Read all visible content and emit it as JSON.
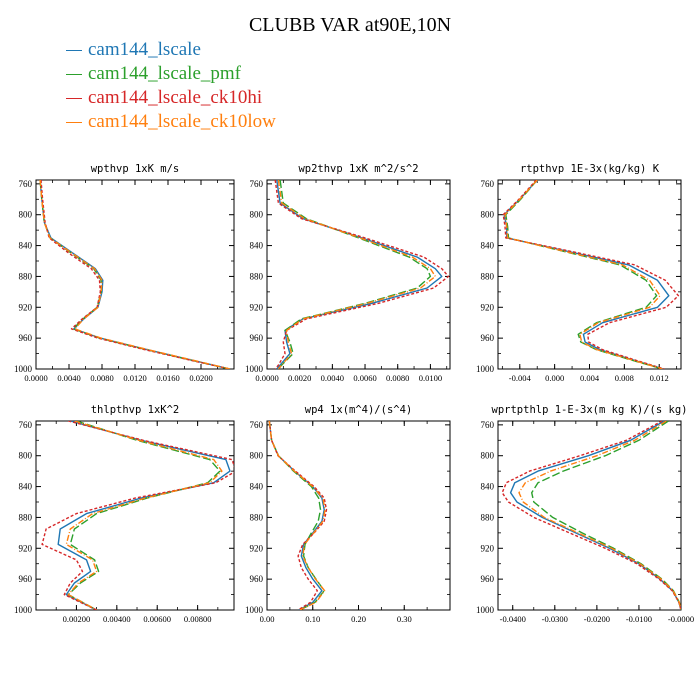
{
  "page": {
    "title": "CLUBB VAR at90E,10N"
  },
  "legend": [
    {
      "label": "cam144_lscale",
      "color": "#1f77b4"
    },
    {
      "label": "cam144_lscale_pmf",
      "color": "#2ca02c"
    },
    {
      "label": "cam144_lscale_ck10hi",
      "color": "#d62728"
    },
    {
      "label": "cam144_lscale_ck10low",
      "color": "#ff7f0e"
    }
  ],
  "chart_data": [
    {
      "type": "line",
      "title": "wpthvp  1xK m/s",
      "ylim": [
        1000,
        755
      ],
      "yticks": [
        760,
        800,
        840,
        880,
        920,
        960,
        1000
      ],
      "xlim": [
        0,
        0.024
      ],
      "xticks": [
        "0.0000",
        "0.0040",
        "0.0080",
        "0.0120",
        "0.0160",
        "0.0200"
      ],
      "xtick_values": [
        0,
        0.004,
        0.008,
        0.012,
        0.016,
        0.02
      ],
      "y": [
        755,
        780,
        810,
        830,
        850,
        870,
        885,
        900,
        920,
        935,
        948,
        960,
        975,
        990,
        1000
      ],
      "series": [
        {
          "name": "cam144_lscale",
          "color": "#1f77b4",
          "dash": "",
          "values": [
            0.0005,
            0.0007,
            0.001,
            0.0018,
            0.0045,
            0.0072,
            0.0081,
            0.008,
            0.0075,
            0.0058,
            0.0046,
            0.0078,
            0.0135,
            0.0195,
            0.0235
          ]
        },
        {
          "name": "cam144_lscale_pmf",
          "color": "#2ca02c",
          "dash": "8 3",
          "values": [
            0.0005,
            0.0007,
            0.001,
            0.0017,
            0.0043,
            0.007,
            0.0079,
            0.0079,
            0.0074,
            0.0057,
            0.0045,
            0.0077,
            0.0134,
            0.0194,
            0.0235
          ]
        },
        {
          "name": "cam144_lscale_ck10hi",
          "color": "#d62728",
          "dash": "3 2",
          "values": [
            0.0006,
            0.0008,
            0.0011,
            0.0016,
            0.004,
            0.0067,
            0.0077,
            0.0078,
            0.0074,
            0.0056,
            0.0043,
            0.0075,
            0.0132,
            0.0193,
            0.0235
          ]
        },
        {
          "name": "cam144_lscale_ck10low",
          "color": "#ff7f0e",
          "dash": "6 2 1 2",
          "values": [
            0.0005,
            0.0007,
            0.001,
            0.0017,
            0.0044,
            0.0071,
            0.008,
            0.0079,
            0.0075,
            0.0058,
            0.0047,
            0.0079,
            0.0136,
            0.0196,
            0.0235
          ]
        }
      ]
    },
    {
      "type": "line",
      "title": "wp2thvp  1xK m^2/s^2",
      "ylim": [
        1000,
        755
      ],
      "yticks": [
        760,
        800,
        840,
        880,
        920,
        960,
        1000
      ],
      "xlim": [
        0,
        0.0112
      ],
      "xticks": [
        "0.0000",
        "0.0020",
        "0.0040",
        "0.0060",
        "0.0080",
        "0.0100"
      ],
      "xtick_values": [
        0,
        0.002,
        0.004,
        0.006,
        0.008,
        0.01
      ],
      "y": [
        755,
        785,
        805,
        830,
        855,
        870,
        880,
        895,
        915,
        935,
        950,
        965,
        980,
        995,
        1000
      ],
      "series": [
        {
          "name": "cam144_lscale",
          "color": "#1f77b4",
          "dash": "",
          "values": [
            0.0006,
            0.0008,
            0.0022,
            0.0058,
            0.0092,
            0.0103,
            0.0107,
            0.0098,
            0.0064,
            0.0022,
            0.0011,
            0.0012,
            0.0014,
            0.0008,
            0.0006
          ]
        },
        {
          "name": "cam144_lscale_pmf",
          "color": "#2ca02c",
          "dash": "8 3",
          "values": [
            0.0008,
            0.001,
            0.0024,
            0.0056,
            0.0087,
            0.0098,
            0.01,
            0.0092,
            0.006,
            0.0021,
            0.0011,
            0.0014,
            0.0016,
            0.0009,
            0.0007
          ]
        },
        {
          "name": "cam144_lscale_ck10hi",
          "color": "#d62728",
          "dash": "3 2",
          "values": [
            0.0005,
            0.0007,
            0.0021,
            0.006,
            0.0096,
            0.0107,
            0.0111,
            0.0102,
            0.0068,
            0.0024,
            0.0012,
            0.001,
            0.0011,
            0.0007,
            0.0005
          ]
        },
        {
          "name": "cam144_lscale_ck10low",
          "color": "#ff7f0e",
          "dash": "6 2 1 2",
          "values": [
            0.0007,
            0.0009,
            0.0023,
            0.0057,
            0.0089,
            0.01,
            0.0103,
            0.0094,
            0.0061,
            0.0022,
            0.0012,
            0.0013,
            0.0015,
            0.0009,
            0.0007
          ]
        }
      ]
    },
    {
      "type": "line",
      "title": "rtpthvp  1E-3x(kg/kg) K",
      "ylim": [
        1000,
        755
      ],
      "yticks": [
        760,
        800,
        840,
        880,
        920,
        960,
        1000
      ],
      "xlim": [
        -0.0065,
        0.0145
      ],
      "xticks": [
        "-0.004",
        "0.000",
        "0.004",
        "0.008",
        "0.012"
      ],
      "xtick_values": [
        -0.004,
        0,
        0.004,
        0.008,
        0.012
      ],
      "y": [
        755,
        780,
        800,
        815,
        830,
        845,
        865,
        885,
        905,
        920,
        940,
        955,
        965,
        975,
        990,
        1000
      ],
      "series": [
        {
          "name": "cam144_lscale",
          "color": "#1f77b4",
          "dash": "",
          "values": [
            -0.002,
            -0.004,
            -0.0058,
            -0.0055,
            -0.0055,
            0.0005,
            0.0085,
            0.0118,
            0.0131,
            0.0118,
            0.0055,
            0.0033,
            0.0035,
            0.0052,
            0.0095,
            0.0125
          ]
        },
        {
          "name": "cam144_lscale_pmf",
          "color": "#2ca02c",
          "dash": "8 3",
          "values": [
            -0.002,
            -0.0039,
            -0.0056,
            -0.0054,
            -0.0053,
            0.0001,
            0.0075,
            0.0105,
            0.0117,
            0.0105,
            0.0048,
            0.0027,
            0.003,
            0.0048,
            0.0093,
            0.0124
          ]
        },
        {
          "name": "cam144_lscale_ck10hi",
          "color": "#d62728",
          "dash": "3 2",
          "values": [
            -0.0021,
            -0.0041,
            -0.0059,
            -0.0057,
            -0.0056,
            0.0008,
            0.0092,
            0.0127,
            0.0142,
            0.0128,
            0.0063,
            0.0038,
            0.0039,
            0.0055,
            0.0097,
            0.0126
          ]
        },
        {
          "name": "cam144_lscale_ck10low",
          "color": "#ff7f0e",
          "dash": "6 2 1 2",
          "values": [
            -0.002,
            -0.004,
            -0.0057,
            -0.0055,
            -0.0054,
            0.0002,
            0.0078,
            0.0109,
            0.0121,
            0.0109,
            0.005,
            0.0029,
            0.0031,
            0.0049,
            0.0094,
            0.0124
          ]
        }
      ]
    },
    {
      "type": "line",
      "title": "thlpthvp  1xK^2",
      "ylim": [
        1000,
        755
      ],
      "yticks": [
        760,
        800,
        840,
        880,
        920,
        960,
        1000
      ],
      "xlim": [
        0,
        0.0098
      ],
      "xticks": [
        "0.00200",
        "0.00400",
        "0.00600",
        "0.00800"
      ],
      "xtick_values": [
        0.002,
        0.004,
        0.006,
        0.008
      ],
      "y": [
        755,
        780,
        805,
        820,
        835,
        855,
        875,
        895,
        915,
        935,
        950,
        965,
        980,
        1000
      ],
      "series": [
        {
          "name": "cam144_lscale",
          "color": "#1f77b4",
          "dash": "",
          "values": [
            0.0017,
            0.0052,
            0.0094,
            0.0096,
            0.0088,
            0.0052,
            0.0025,
            0.0012,
            0.0011,
            0.0025,
            0.0027,
            0.0019,
            0.0015,
            0.003
          ]
        },
        {
          "name": "cam144_lscale_pmf",
          "color": "#2ca02c",
          "dash": "8 3",
          "values": [
            0.002,
            0.005,
            0.0086,
            0.0091,
            0.0085,
            0.0055,
            0.003,
            0.0019,
            0.0017,
            0.0029,
            0.0031,
            0.0022,
            0.0016,
            0.003
          ]
        },
        {
          "name": "cam144_lscale_ck10hi",
          "color": "#d62728",
          "dash": "3 2",
          "values": [
            0.0016,
            0.0053,
            0.0097,
            0.0099,
            0.0089,
            0.0049,
            0.002,
            0.0005,
            0.0003,
            0.002,
            0.0023,
            0.0017,
            0.0014,
            0.003
          ]
        },
        {
          "name": "cam144_lscale_ck10low",
          "color": "#ff7f0e",
          "dash": "6 2 1 2",
          "values": [
            0.0019,
            0.0051,
            0.0088,
            0.0092,
            0.0086,
            0.0054,
            0.0028,
            0.0017,
            0.0015,
            0.0028,
            0.003,
            0.0021,
            0.0016,
            0.003
          ]
        }
      ]
    },
    {
      "type": "line",
      "title": "wp4  1x(m^4)/(s^4)",
      "ylim": [
        1000,
        755
      ],
      "yticks": [
        760,
        800,
        840,
        880,
        920,
        960,
        1000
      ],
      "xlim": [
        0,
        0.4
      ],
      "xticks": [
        "0.00",
        "0.10",
        "0.20",
        "0.30"
      ],
      "xtick_values": [
        0,
        0.1,
        0.2,
        0.3
      ],
      "y": [
        755,
        780,
        800,
        820,
        840,
        855,
        870,
        885,
        900,
        915,
        930,
        945,
        960,
        975,
        990,
        1000
      ],
      "series": [
        {
          "name": "cam144_lscale",
          "color": "#1f77b4",
          "dash": "",
          "values": [
            0.005,
            0.01,
            0.025,
            0.06,
            0.1,
            0.12,
            0.125,
            0.12,
            0.1,
            0.08,
            0.075,
            0.085,
            0.1,
            0.12,
            0.1,
            0.07
          ]
        },
        {
          "name": "cam144_lscale_pmf",
          "color": "#2ca02c",
          "dash": "8 3",
          "values": [
            0.005,
            0.01,
            0.025,
            0.058,
            0.097,
            0.113,
            0.117,
            0.112,
            0.097,
            0.083,
            0.08,
            0.09,
            0.107,
            0.125,
            0.105,
            0.072
          ]
        },
        {
          "name": "cam144_lscale_ck10hi",
          "color": "#d62728",
          "dash": "3 2",
          "values": [
            0.005,
            0.01,
            0.024,
            0.062,
            0.103,
            0.125,
            0.13,
            0.125,
            0.103,
            0.078,
            0.068,
            0.075,
            0.09,
            0.11,
            0.095,
            0.068
          ]
        },
        {
          "name": "cam144_lscale_ck10low",
          "color": "#ff7f0e",
          "dash": "6 2 1 2",
          "values": [
            0.005,
            0.01,
            0.025,
            0.06,
            0.1,
            0.122,
            0.127,
            0.122,
            0.102,
            0.082,
            0.078,
            0.09,
            0.106,
            0.126,
            0.107,
            0.072
          ]
        }
      ]
    },
    {
      "type": "line",
      "title": "wprtpthlp  1-E-3x(m kg K)/(s kg)",
      "ylim": [
        1000,
        755
      ],
      "yticks": [
        760,
        800,
        840,
        880,
        920,
        960,
        1000
      ],
      "xlim": [
        -0.0435,
        0
      ],
      "xticks": [
        "-0.0400",
        "-0.0300",
        "-0.0200",
        "-0.0100",
        "-0.0000"
      ],
      "xtick_values": [
        -0.04,
        -0.03,
        -0.02,
        -0.01,
        0
      ],
      "y": [
        755,
        780,
        800,
        820,
        835,
        848,
        860,
        880,
        900,
        920,
        940,
        960,
        975,
        990,
        1000
      ],
      "series": [
        {
          "name": "cam144_lscale",
          "color": "#1f77b4",
          "dash": "",
          "values": [
            -0.004,
            -0.012,
            -0.022,
            -0.034,
            -0.0395,
            -0.0405,
            -0.039,
            -0.033,
            -0.025,
            -0.017,
            -0.01,
            -0.005,
            -0.002,
            -0.0005,
            0
          ]
        },
        {
          "name": "cam144_lscale_pmf",
          "color": "#2ca02c",
          "dash": "8 3",
          "values": [
            -0.003,
            -0.01,
            -0.018,
            -0.028,
            -0.034,
            -0.0355,
            -0.035,
            -0.0305,
            -0.0235,
            -0.016,
            -0.0095,
            -0.0045,
            -0.0018,
            -0.0004,
            0
          ]
        },
        {
          "name": "cam144_lscale_ck10hi",
          "color": "#d62728",
          "dash": "3 2",
          "values": [
            -0.0045,
            -0.013,
            -0.024,
            -0.036,
            -0.0415,
            -0.0425,
            -0.041,
            -0.035,
            -0.0265,
            -0.018,
            -0.0105,
            -0.0052,
            -0.0021,
            -0.0005,
            0
          ]
        },
        {
          "name": "cam144_lscale_ck10low",
          "color": "#ff7f0e",
          "dash": "6 2 1 2",
          "values": [
            -0.0035,
            -0.011,
            -0.02,
            -0.031,
            -0.037,
            -0.0385,
            -0.0375,
            -0.0325,
            -0.0245,
            -0.0165,
            -0.0098,
            -0.0047,
            -0.0019,
            -0.0004,
            0
          ]
        }
      ]
    }
  ]
}
